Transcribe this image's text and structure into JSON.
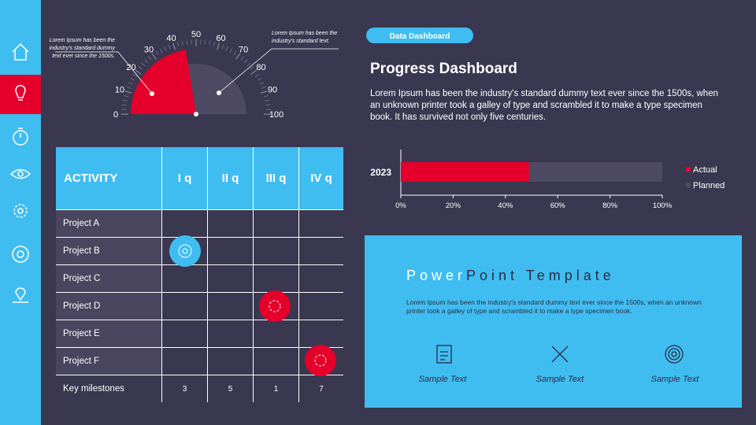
{
  "header": {
    "badge": "Data Dashboard",
    "title": "Progress Dashboard",
    "text": "Lorem Ipsum has been the industry's standard dummy text ever since the 1500s, when an unknown printer took a galley of type and scrambled it to make a type specimen book. It has survived not only five centuries."
  },
  "chart_data": [
    {
      "type": "gauge",
      "value": 45,
      "color": "#e4002b",
      "ylim": [
        0,
        100
      ],
      "yticks": [
        0,
        10,
        20,
        30,
        40,
        50,
        60,
        70,
        80,
        90,
        100
      ],
      "annotations": [
        "Lorem Ipsum has been the industry's standard dummy text ever since the 1500s.",
        "Lorem Ipsum has been the industry's standard text."
      ]
    },
    {
      "type": "bar",
      "categories": [
        "2023"
      ],
      "series": [
        {
          "name": "Actual",
          "color": "#e4002b",
          "values": [
            49
          ]
        },
        {
          "name": "Planned",
          "color": "#4e4a63",
          "values": [
            100
          ]
        }
      ],
      "xlim": [
        0,
        100
      ],
      "xticks": [
        {
          "value": 0,
          "label": "0%"
        },
        {
          "value": 20,
          "label": "20%"
        },
        {
          "value": 40,
          "label": "40%"
        },
        {
          "value": 60,
          "label": "60%"
        },
        {
          "value": 80,
          "label": "80%"
        },
        {
          "value": 100,
          "label": "100%"
        }
      ],
      "legend": "right"
    }
  ],
  "table": {
    "header": [
      "ACTIVITY",
      "I q",
      "II q",
      "III q",
      "IV q"
    ],
    "rows": [
      "Project A",
      "Project B",
      "Project C",
      "Project D",
      "Project E",
      "Project F"
    ],
    "footer": [
      "Key milestones",
      "3",
      "5",
      "1",
      "7"
    ]
  },
  "template": {
    "title_a": "Power",
    "title_b": "Point Template",
    "text": "Lorem Ipsum has been the industry's standard dummy text ever since the 1500s, when an unknown printer took a galley of type and scrambled it to make a type specimen book.",
    "items": [
      "Sample Text",
      "Sample Text",
      "Sample Text"
    ]
  }
}
